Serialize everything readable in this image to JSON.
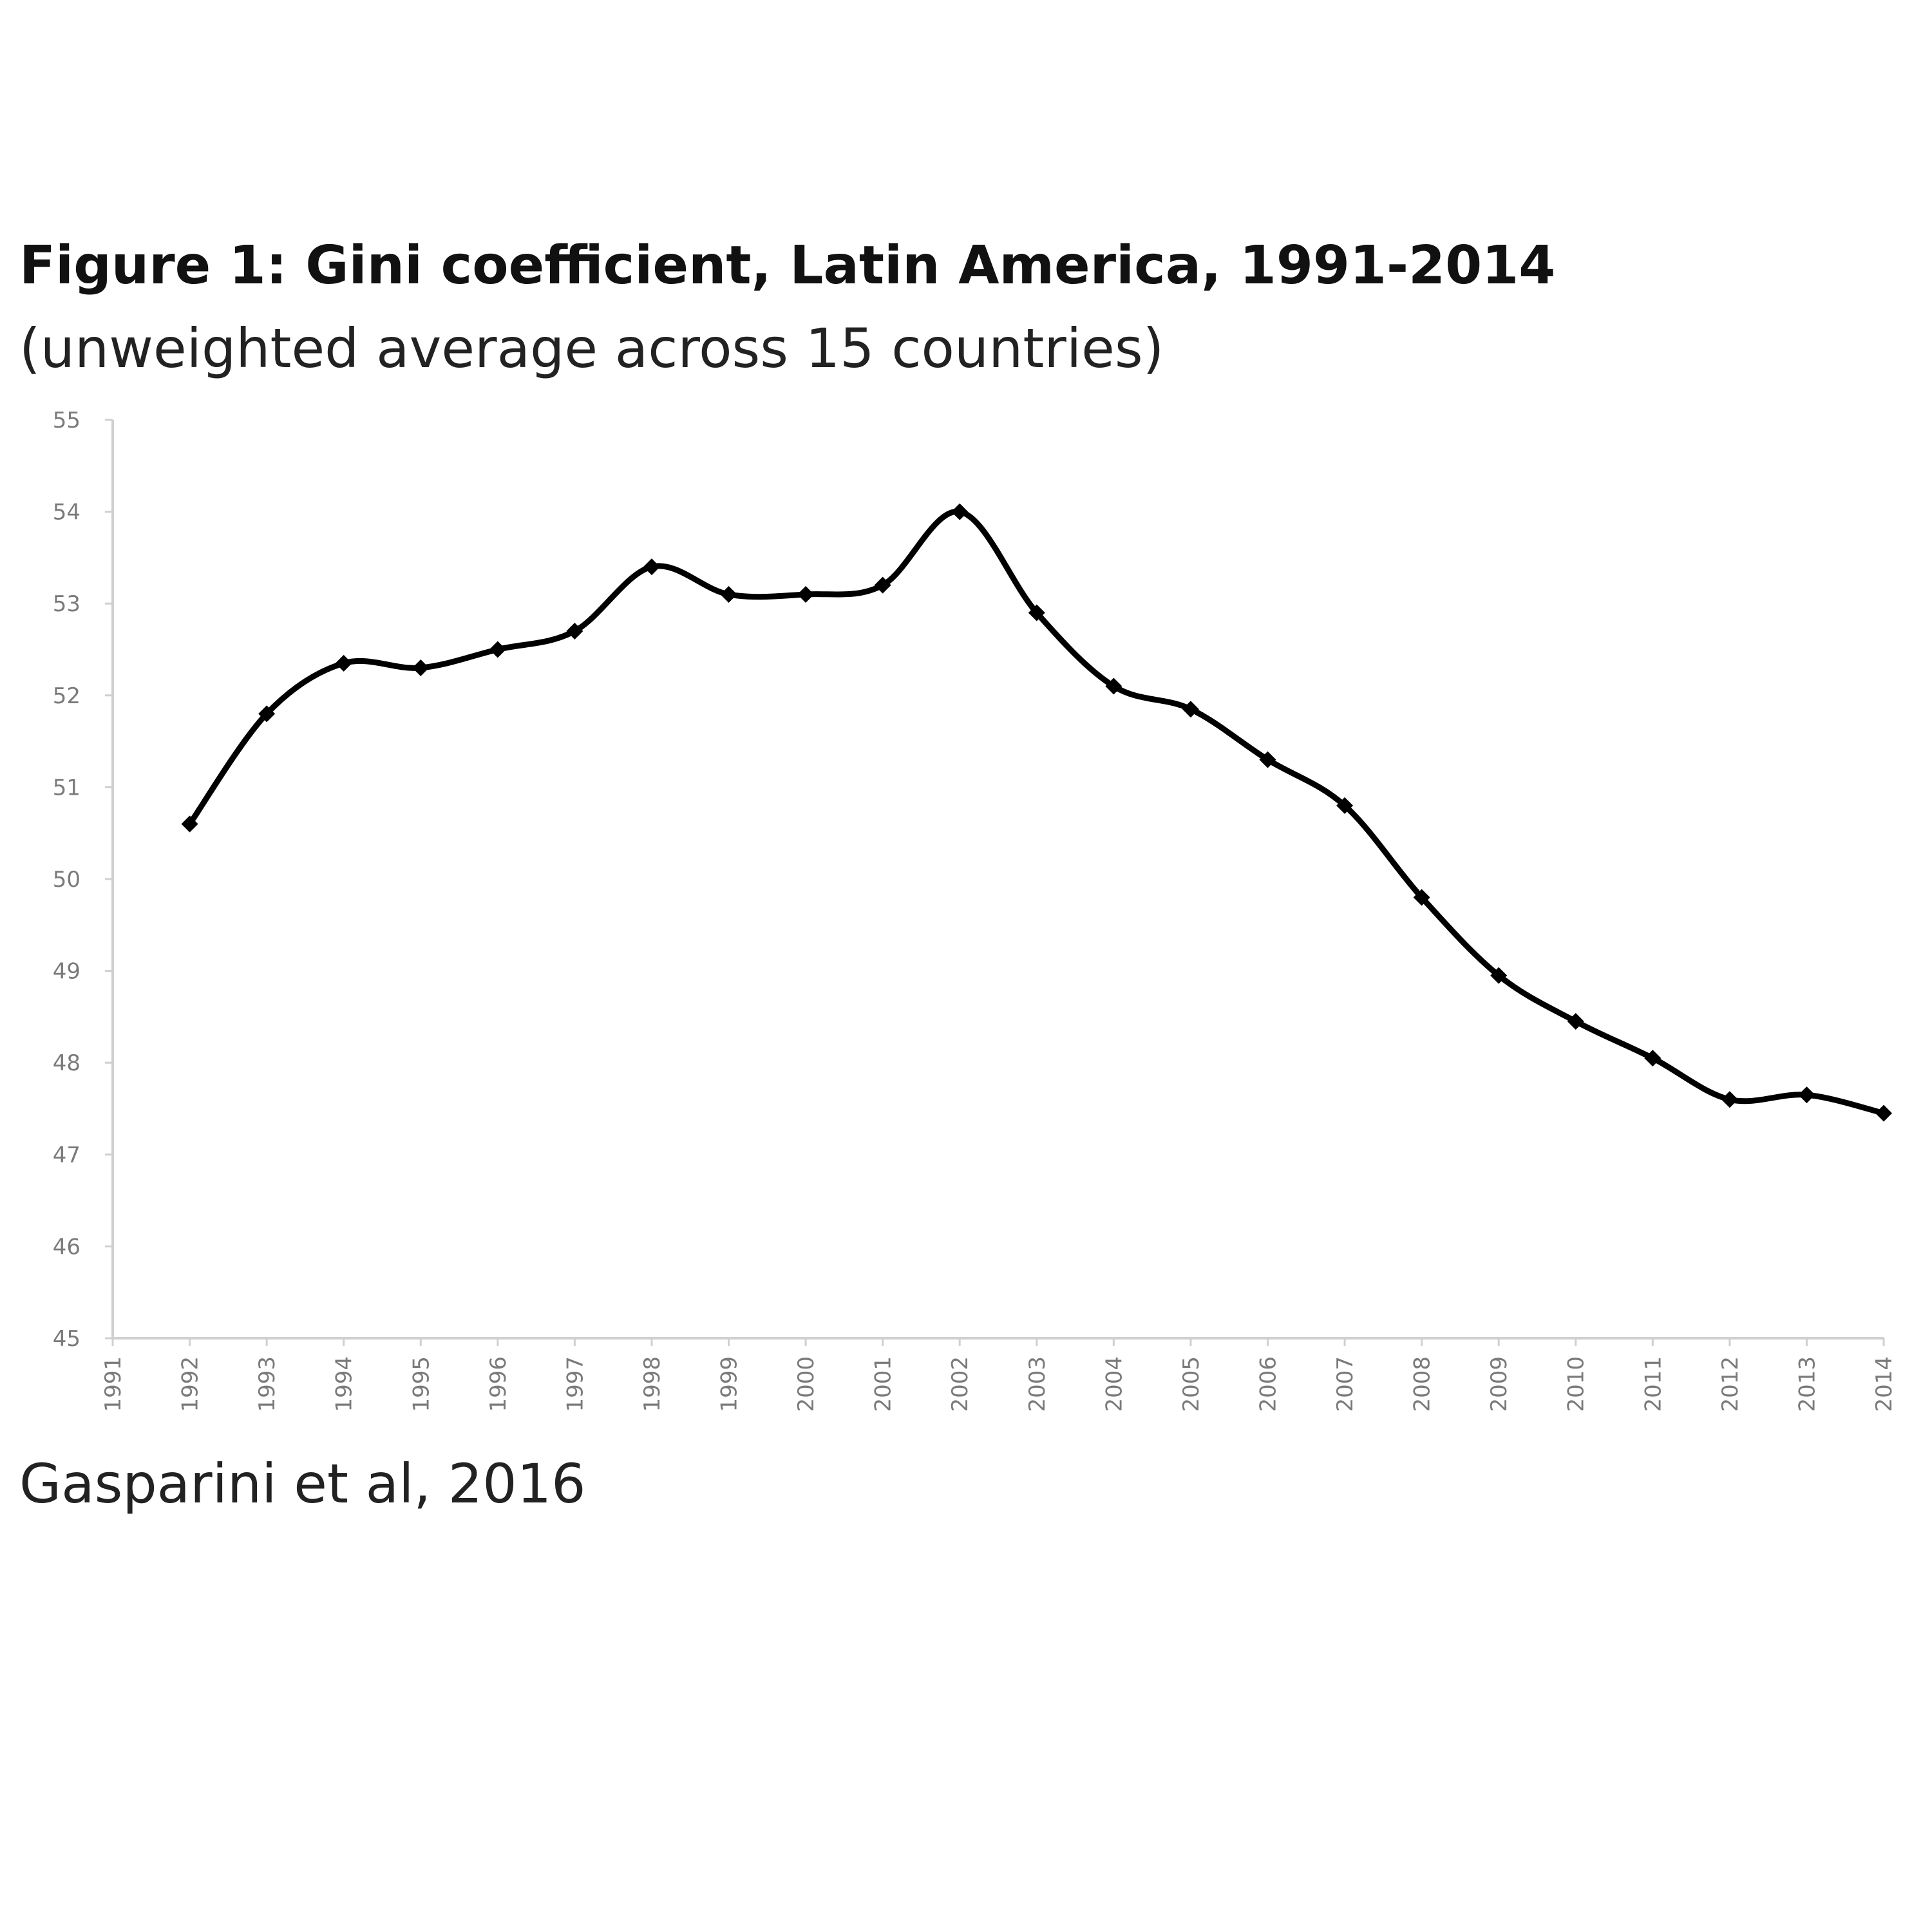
{
  "chart_data": {
    "type": "line",
    "title": "Figure 1: Gini coefficient, Latin America, 1991-2014",
    "subtitle": "(unweighted average across 15 countries)",
    "source": "Gasparini et al, 2016",
    "xlabel": "",
    "ylabel": "",
    "categories": [
      "1991",
      "1992",
      "1993",
      "1994",
      "1995",
      "1996",
      "1997",
      "1998",
      "1999",
      "2000",
      "2001",
      "2002",
      "2003",
      "2004",
      "2005",
      "2006",
      "2007",
      "2008",
      "2009",
      "2010",
      "2011",
      "2012",
      "2013",
      "2014"
    ],
    "series": [
      {
        "values": [
          null,
          50.6,
          51.8,
          52.35,
          52.3,
          52.5,
          52.7,
          53.4,
          53.1,
          53.1,
          53.2,
          54.0,
          52.9,
          52.1,
          51.85,
          51.3,
          50.8,
          49.8,
          48.95,
          48.45,
          48.05,
          47.6,
          47.65,
          47.45
        ],
        "color": "#000000",
        "marker": "diamond"
      }
    ],
    "yticks": [
      "45",
      "46",
      "47",
      "48",
      "49",
      "50",
      "51",
      "52",
      "53",
      "54",
      "55"
    ],
    "ylim": [
      45,
      55
    ],
    "grid": false,
    "legend": "none"
  }
}
